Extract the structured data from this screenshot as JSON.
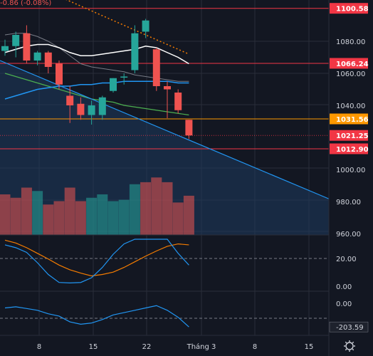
{
  "header": {
    "change_text": "-0.86 (-0.08%)"
  },
  "colors": {
    "up": "#26a69a",
    "down": "#ef5350",
    "background": "#131722",
    "grid": "#2a2e39",
    "text": "#d1d4dc",
    "ma_fast": "#ffffff",
    "ma_slow": "#787b86",
    "ma_green": "#4caf50",
    "ma_blue": "#2196f3",
    "trend_blue": "#2196f3",
    "trend_dotted": "#f57c00",
    "osc_line": "#2196f3",
    "osc_orange": "#f57c00",
    "level_red": "#f23645",
    "level_orange": "#ff9800"
  },
  "price_axis": {
    "ticks": [
      "1080.00",
      "1060.00",
      "1040.00",
      "1000.00",
      "980.00",
      "960.00"
    ]
  },
  "price_levels": [
    {
      "label": "1100.58",
      "value": 1100.58,
      "color": "#f23645",
      "style": "solid"
    },
    {
      "label": "1066.24",
      "value": 1066.24,
      "color": "#f23645",
      "style": "solid"
    },
    {
      "label": "1031.56",
      "value": 1031.56,
      "color": "#ff9800",
      "style": "solid"
    },
    {
      "label": "1021.25",
      "value": 1021.25,
      "color": "#f23645",
      "style": "dotted"
    },
    {
      "label": "1012.90",
      "value": 1012.9,
      "color": "#f23645",
      "style": "solid"
    }
  ],
  "candles": [
    {
      "o": 1074,
      "h": 1081,
      "c": 1077,
      "l": 1071
    },
    {
      "o": 1077,
      "h": 1086,
      "c": 1084,
      "l": 1070
    },
    {
      "o": 1085,
      "h": 1090,
      "c": 1068,
      "l": 1066
    },
    {
      "o": 1068,
      "h": 1074,
      "c": 1073,
      "l": 1065
    },
    {
      "o": 1073,
      "h": 1074,
      "c": 1064,
      "l": 1060
    },
    {
      "o": 1066,
      "h": 1068,
      "c": 1053,
      "l": 1050
    },
    {
      "o": 1046,
      "h": 1052,
      "c": 1040,
      "l": 1029
    },
    {
      "o": 1041,
      "h": 1045,
      "c": 1034,
      "l": 1031
    },
    {
      "o": 1034,
      "h": 1043,
      "c": 1040,
      "l": 1028
    },
    {
      "o": 1034,
      "h": 1046,
      "c": 1045,
      "l": 1031
    },
    {
      "o": 1049,
      "h": 1057,
      "c": 1057,
      "l": 1048
    },
    {
      "o": 1058,
      "h": 1060,
      "c": 1058,
      "l": 1053
    },
    {
      "o": 1062,
      "h": 1090,
      "c": 1085,
      "l": 1060
    },
    {
      "o": 1086,
      "h": 1094,
      "c": 1093,
      "l": 1082
    },
    {
      "o": 1075,
      "h": 1076,
      "c": 1052,
      "l": 1049
    },
    {
      "o": 1052,
      "h": 1055,
      "c": 1050,
      "l": 1032
    },
    {
      "o": 1048,
      "h": 1050,
      "c": 1037,
      "l": 1035
    },
    {
      "o": 1031,
      "h": 1031,
      "c": 1021.25,
      "l": 1019
    }
  ],
  "ma_fast": [
    1073,
    1075,
    1077,
    1078,
    1078,
    1076,
    1073,
    1071,
    1071,
    1072,
    1073,
    1074,
    1075,
    1077,
    1076,
    1073,
    1070,
    1066
  ],
  "ma_slow": [
    1084,
    1085,
    1085,
    1083,
    1080,
    1076,
    1071,
    1066,
    1064,
    1063,
    1062,
    1061,
    1059,
    1058,
    1057,
    1056,
    1055,
    1055
  ],
  "ma_green": [
    1060,
    1058,
    1056,
    1054,
    1052,
    1050,
    1048,
    1046,
    1044,
    1043,
    1042,
    1040,
    1039,
    1038,
    1037,
    1036,
    1035,
    1034
  ],
  "ma_blue": [
    1044,
    1046,
    1048,
    1050,
    1051,
    1052,
    1052,
    1053,
    1053,
    1054,
    1054,
    1055,
    1055,
    1055,
    1055,
    1055,
    1054,
    1054
  ],
  "volumes": [
    0.6,
    0.55,
    0.7,
    0.65,
    0.45,
    0.5,
    0.7,
    0.5,
    0.55,
    0.6,
    0.5,
    0.52,
    0.75,
    0.78,
    0.85,
    0.78,
    0.48,
    0.58
  ],
  "vol_up": [
    false,
    false,
    false,
    true,
    false,
    false,
    false,
    false,
    true,
    true,
    true,
    true,
    true,
    false,
    false,
    false,
    false,
    false
  ],
  "trend_blue": {
    "from": [
      1068,
      0
    ],
    "to": [
      990,
      27
    ]
  },
  "trend_dotted": {
    "from": [
      1108,
      5
    ],
    "to": [
      1072,
      17
    ]
  },
  "osc1": {
    "ticks": [
      "20.00",
      "0.00"
    ],
    "values": [
      88,
      82,
      72,
      50,
      25,
      8,
      7,
      8,
      18,
      40,
      68,
      90,
      100,
      100,
      100,
      100,
      70,
      45
    ],
    "orange": [
      98,
      92,
      82,
      70,
      58,
      45,
      35,
      28,
      22,
      25,
      30,
      40,
      52,
      64,
      75,
      85,
      90,
      88
    ]
  },
  "osc2": {
    "ticks": [
      "0.00"
    ],
    "last_label": "-203.59",
    "values": [
      -40,
      -30,
      -45,
      -60,
      -90,
      -110,
      -160,
      -180,
      -170,
      -140,
      -100,
      -80,
      -60,
      -40,
      -20,
      -60,
      -120,
      -203.59
    ]
  },
  "time_axis": {
    "labels": [
      "8",
      "15",
      "22",
      "Tháng 3",
      "8",
      "15"
    ]
  },
  "settings_icon": "gear-icon"
}
